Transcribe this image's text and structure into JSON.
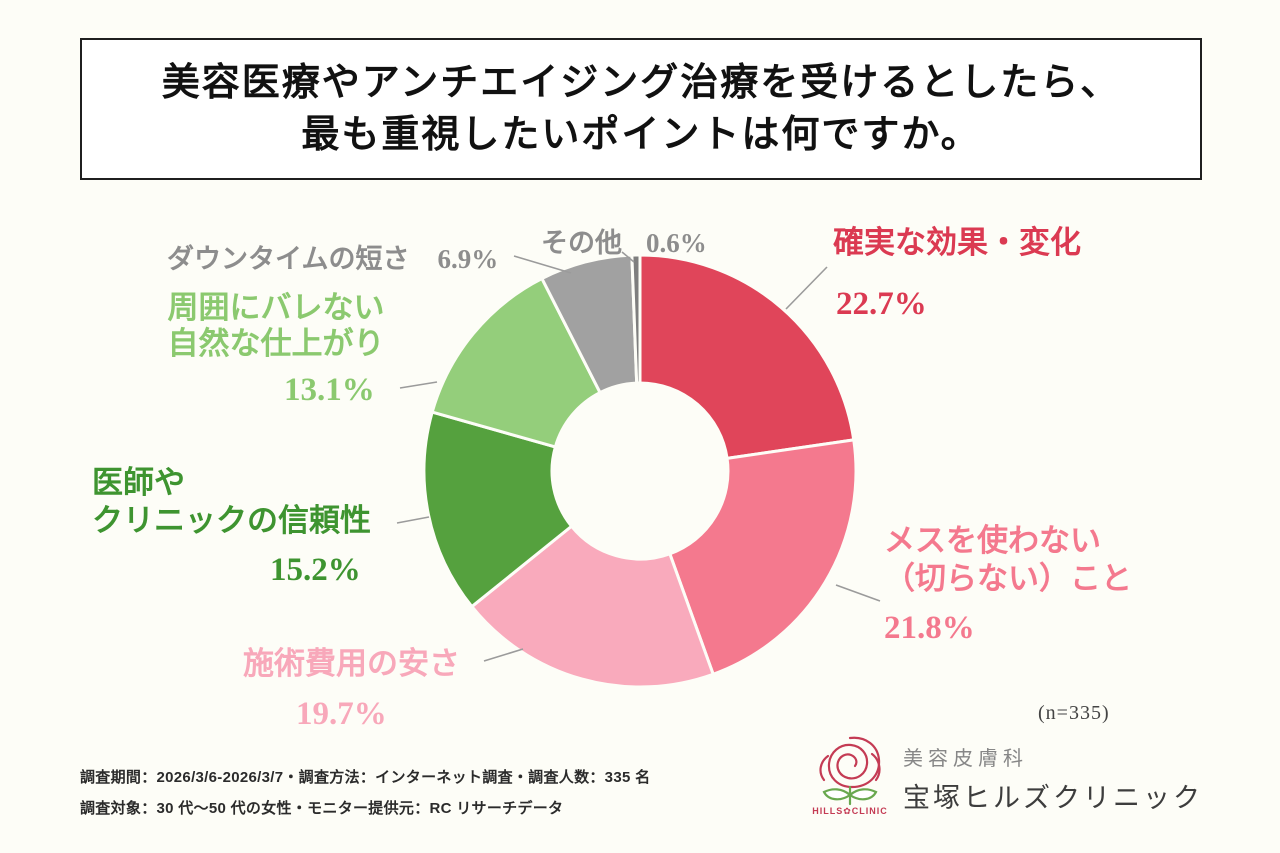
{
  "title": {
    "line1": "美容医療やアンチエイジング治療を受けるとしたら、",
    "line2": "最も重視したいポイントは何ですか。"
  },
  "chart_data": {
    "type": "pie",
    "style": "donut",
    "title": "美容医療やアンチエイジング治療を受けるとしたら、最も重視したいポイントは何ですか。",
    "unit": "%",
    "sample_size_label": "(n=335)",
    "start_angle": "top",
    "direction": "clockwise",
    "categories": [
      "確実な効果・変化",
      "メスを使わない（切らない）こと",
      "施術費用の安さ",
      "医師やクリニックの信頼性",
      "周囲にバレない自然な仕上がり",
      "ダウンタイムの短さ",
      "その他"
    ],
    "values": [
      22.7,
      21.8,
      19.7,
      15.2,
      13.1,
      6.9,
      0.6
    ],
    "colors": [
      "#e0455a",
      "#f4798e",
      "#f9aabc",
      "#55a13e",
      "#94ce7b",
      "#a1a1a1",
      "#7e7e7e"
    ]
  },
  "labels": {
    "effect": {
      "name": "確実な効果・変化",
      "pct": "22.7%",
      "color": "#db3a52"
    },
    "scalpel": {
      "name": "メスを使わない\n（切らない）こと",
      "pct": "21.8%",
      "color": "#f4798e"
    },
    "cost": {
      "name": "施術費用の安さ",
      "pct": "19.7%",
      "color": "#f8a8ba"
    },
    "trust": {
      "name": "医師や\nクリニックの信頼性",
      "pct": "15.2%",
      "color": "#3e9430"
    },
    "natural": {
      "name": "周囲にバレない\n自然な仕上がり",
      "pct": "13.1%",
      "color": "#8bc96f"
    },
    "downtime": {
      "name": "ダウンタイムの短さ",
      "pct": "6.9%",
      "color": "#8d8d8d"
    },
    "other": {
      "name": "その他",
      "pct": "0.6%",
      "color": "#8d8d8d"
    }
  },
  "note": {
    "n_label": "(n=335)"
  },
  "footer": {
    "line1": "調査期間：2026/3/6-2026/3/7・調査方法：インターネット調査・調査人数：335 名",
    "line2": "調査対象：30 代〜50 代の女性・モニター提供元：RC リサーチデータ"
  },
  "clinic": {
    "dept": "美容皮膚科",
    "name": "宝塚ヒルズクリニック",
    "logo_caption": "HILLS✿CLINIC"
  }
}
